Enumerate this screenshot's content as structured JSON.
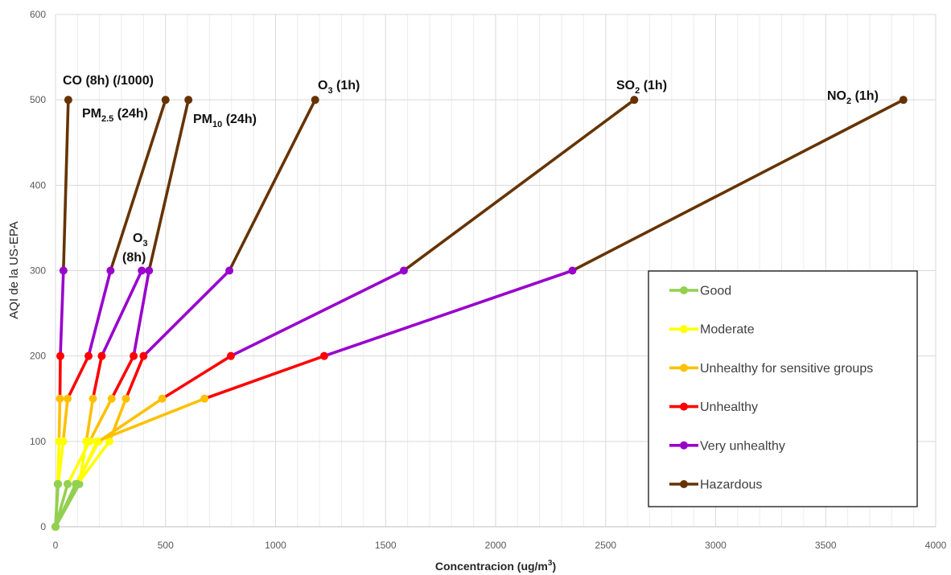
{
  "chart_data": {
    "type": "line",
    "xlabel": "Concentracion  (ug/m",
    "xlabel_sup": "3",
    "xlabel_end": ")",
    "ylabel": "AQI de la US-EPA",
    "xlim": [
      0,
      4000
    ],
    "ylim": [
      0,
      600
    ],
    "x_ticks": [
      0,
      500,
      1000,
      1500,
      2000,
      2500,
      3000,
      3500,
      4000
    ],
    "y_ticks": [
      0,
      100,
      200,
      300,
      400,
      500,
      600
    ],
    "x_minor_step": 100,
    "grid": true,
    "legend_position": "bottom-right",
    "categories": [
      {
        "name": "Good",
        "color": "#92D050",
        "y_from": 0,
        "y_to": 50
      },
      {
        "name": "Moderate",
        "color": "#FFFF00",
        "y_from": 50,
        "y_to": 100
      },
      {
        "name": "Unhealthy for sensitive groups",
        "color": "#FFC000",
        "y_from": 100,
        "y_to": 150
      },
      {
        "name": "Unhealthy",
        "color": "#FF0000",
        "y_from": 150,
        "y_to": 200
      },
      {
        "name": "Very unhealthy",
        "color": "#9900CC",
        "y_from": 200,
        "y_to": 300
      },
      {
        "name": "Hazardous",
        "color": "#663300",
        "y_from": 300,
        "y_to": 500
      }
    ],
    "series": [
      {
        "id": "co",
        "x": [
          0,
          10,
          16,
          20,
          22,
          36,
          58
        ],
        "y": [
          0,
          50,
          100,
          150,
          200,
          300,
          500
        ]
      },
      {
        "id": "pm25",
        "x": [
          0,
          12,
          35,
          55,
          150,
          250,
          500
        ],
        "y": [
          0,
          50,
          100,
          150,
          200,
          300,
          500
        ]
      },
      {
        "id": "pm10",
        "x": [
          0,
          55,
          155,
          255,
          355,
          425,
          604
        ],
        "y": [
          0,
          50,
          100,
          150,
          200,
          300,
          500
        ]
      },
      {
        "id": "o3-8h",
        "x": [
          0,
          108,
          140,
          170,
          210,
          392
        ],
        "y": [
          0,
          50,
          100,
          150,
          200,
          300
        ]
      },
      {
        "id": "o3-1h",
        "x": [
          0,
          100,
          245,
          320,
          400,
          790,
          1180
        ],
        "y": [
          0,
          50,
          100,
          150,
          200,
          300,
          500
        ]
      },
      {
        "id": "so2",
        "x": [
          0,
          92,
          197,
          485,
          797,
          1583,
          2630
        ],
        "y": [
          0,
          50,
          100,
          150,
          200,
          300,
          500
        ]
      },
      {
        "id": "no2",
        "x": [
          0,
          100,
          188,
          677,
          1221,
          2349,
          3853
        ],
        "y": [
          0,
          50,
          100,
          150,
          200,
          300,
          500
        ]
      }
    ],
    "annotations": [
      {
        "id": "co",
        "base": "CO (8h) (/1000)",
        "sub": "",
        "tail": ""
      },
      {
        "id": "pm25",
        "base": "PM",
        "sub": "2.5",
        "tail": " (24h)"
      },
      {
        "id": "pm10",
        "base": "PM",
        "sub": "10",
        "tail": " (24h)"
      },
      {
        "id": "o3-8h",
        "base": "O",
        "sub": "3",
        "tail": "",
        "line2": "(8h)"
      },
      {
        "id": "o3-1h",
        "base": "O",
        "sub": "3",
        "tail": " (1h)"
      },
      {
        "id": "so2",
        "base": "SO",
        "sub": "2",
        "tail": " (1h)"
      },
      {
        "id": "no2",
        "base": "NO",
        "sub": "2",
        "tail": " (1h)"
      }
    ]
  }
}
